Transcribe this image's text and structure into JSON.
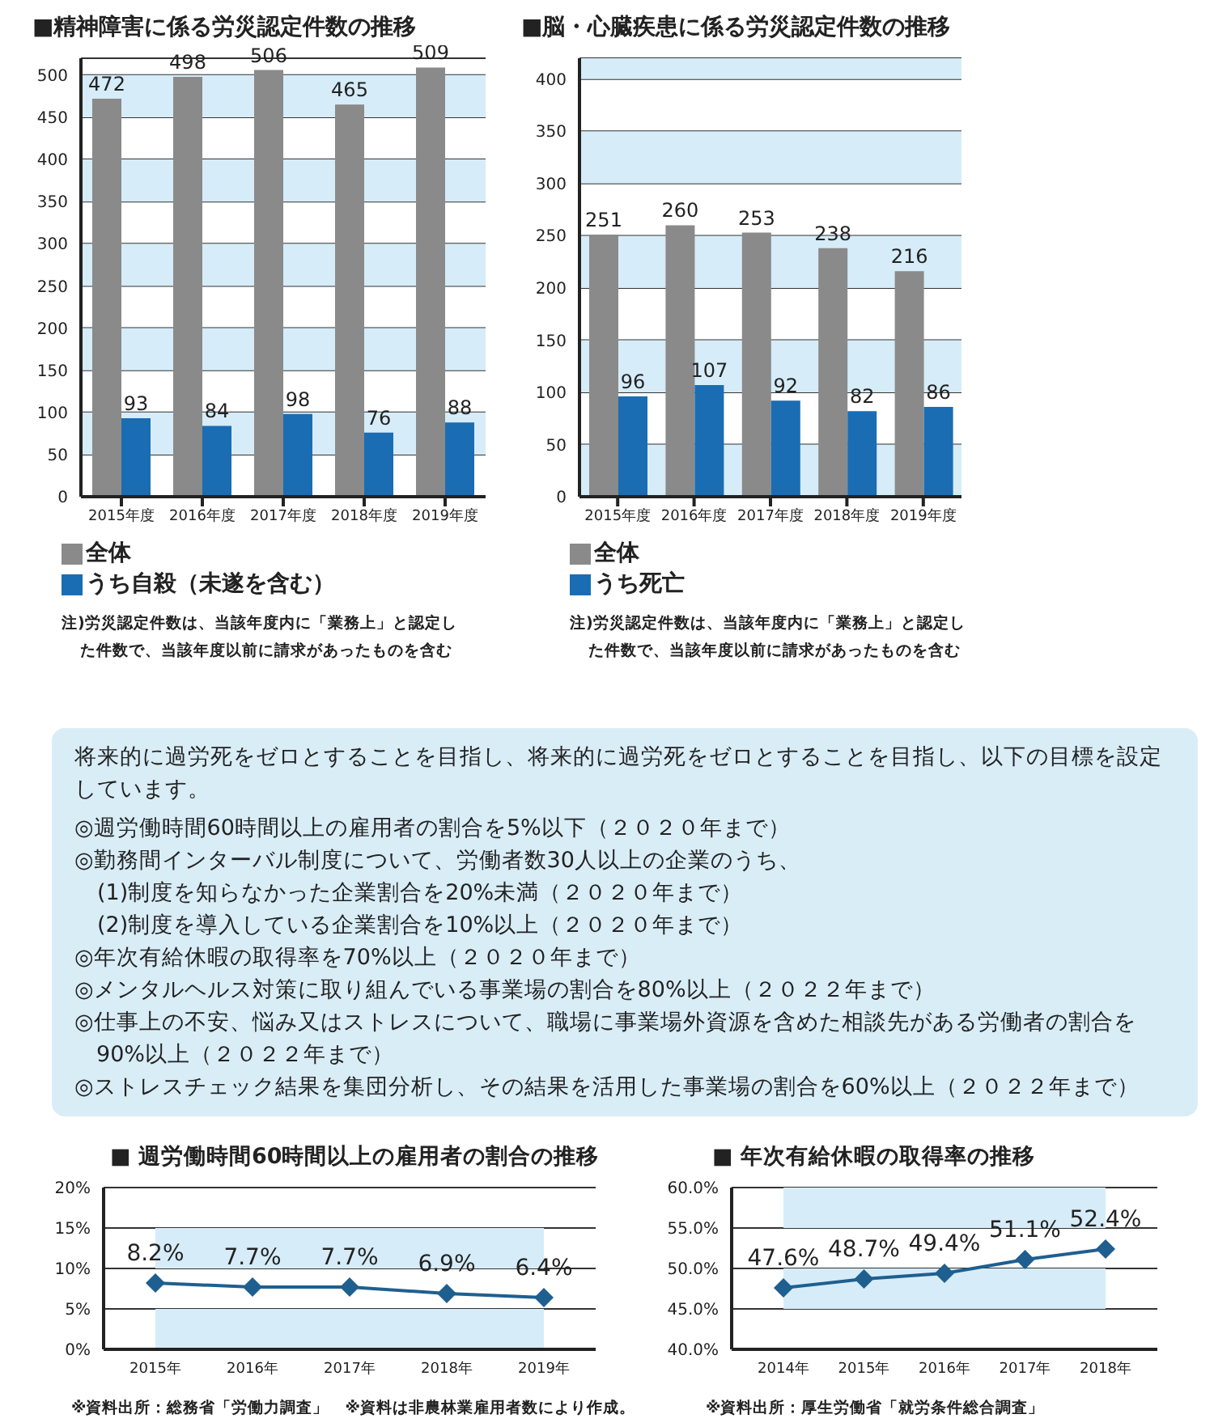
{
  "chart_data": [
    {
      "type": "bar",
      "title": "■精神障害に係る労災認定件数の推移",
      "categories": [
        "2015年度",
        "2016年度",
        "2017年度",
        "2018年度",
        "2019年度"
      ],
      "series": [
        {
          "name": "全体",
          "color": "#8a8a8a",
          "values": [
            472,
            498,
            506,
            465,
            509
          ]
        },
        {
          "name": "うち自殺（未遂を含む）",
          "color": "#1a6db3",
          "values": [
            93,
            84,
            98,
            76,
            88
          ]
        }
      ],
      "ylim": [
        0,
        520
      ],
      "yticks": [
        0,
        50,
        100,
        150,
        200,
        250,
        300,
        350,
        400,
        450,
        500
      ],
      "grid": "y",
      "legend": "bottom left",
      "data_labels": true,
      "bands": [
        {
          "axis": "y",
          "from": 50,
          "to": 100,
          "color": "#d6ecf8"
        },
        {
          "axis": "y",
          "from": 150,
          "to": 200,
          "color": "#d6ecf8"
        },
        {
          "axis": "y",
          "from": 250,
          "to": 300,
          "color": "#d6ecf8"
        },
        {
          "axis": "y",
          "from": 350,
          "to": 400,
          "color": "#d6ecf8"
        },
        {
          "axis": "y",
          "from": 450,
          "to": 500,
          "color": "#d6ecf8"
        }
      ],
      "annotations": [
        "注)労災認定件数は、当該年度内に「業務上」と認定した件数で、当該年度以前に請求があったものを含む"
      ]
    },
    {
      "type": "bar",
      "title": "■脳・心臓疾患に係る労災認定件数の推移",
      "categories": [
        "2015年度",
        "2016年度",
        "2017年度",
        "2018年度",
        "2019年度"
      ],
      "series": [
        {
          "name": "全体",
          "color": "#8a8a8a",
          "values": [
            251,
            260,
            253,
            238,
            216
          ]
        },
        {
          "name": "うち死亡",
          "color": "#1a6db3",
          "values": [
            96,
            107,
            92,
            82,
            86
          ]
        }
      ],
      "ylim": [
        0,
        420
      ],
      "yticks": [
        0,
        50,
        100,
        150,
        200,
        250,
        300,
        350,
        400
      ],
      "grid": "y",
      "legend": "bottom left",
      "data_labels": true,
      "bands": [
        {
          "axis": "y",
          "from": 0,
          "to": 50,
          "color": "#d6ecf8"
        },
        {
          "axis": "y",
          "from": 100,
          "to": 150,
          "color": "#d6ecf8"
        },
        {
          "axis": "y",
          "from": 200,
          "to": 250,
          "color": "#d6ecf8"
        },
        {
          "axis": "y",
          "from": 300,
          "to": 350,
          "color": "#d6ecf8"
        },
        {
          "axis": "y",
          "from": 400,
          "to": 420,
          "color": "#d6ecf8"
        }
      ],
      "annotations": [
        "注)労災認定件数は、当該年度内に「業務上」と認定した件数で、当該年度以前に請求があったものを含む"
      ]
    },
    {
      "type": "other",
      "annotations": [
        "将来的に過労死をゼロとすることを目指し、将来的に過労死をゼロとすることを目指し、以下の目標を設定しています。",
        "◎週労働時間60時間以上の雇用者の割合を5%以下（２０２０年まで）",
        "◎勤務間インターバル制度について、労働者数30人以上の企業のうち、",
        "　(1)制度を知らなかった企業割合を20%未満（２０２０年まで）",
        "　(2)制度を導入している企業割合を10%以上（２０２０年まで）",
        "◎年次有給休暇の取得率を70%以上（２０２０年まで）",
        "◎メンタルヘルス対策に取り組んでいる事業場の割合を80%以上（２０２２年まで）",
        "◎仕事上の不安、悩み又はストレスについて、職場に事業場外資源を含めた相談先がある労働者の割合を90%以上（２０２２年まで）",
        "◎ストレスチェック結果を集団分析し、その結果を活用した事業場の割合を60%以上（２０２２年まで）"
      ]
    },
    {
      "type": "line",
      "title": "■ 週労働時間60時間以上の雇用者の割合の推移",
      "categories": [
        "2015年",
        "2016年",
        "2017年",
        "2018年",
        "2019年"
      ],
      "series": [
        {
          "color": "#1f5f8f",
          "values": [
            8.2,
            7.7,
            7.7,
            6.9,
            6.4
          ],
          "value_labels": [
            "8.2%",
            "7.7%",
            "7.7%",
            "6.9%",
            "6.4%"
          ]
        }
      ],
      "marker": "diamond",
      "ylim": [
        0,
        20
      ],
      "yticks": [
        {
          "value": 0,
          "label": "0%"
        },
        {
          "value": 5,
          "label": "5%"
        },
        {
          "value": 10,
          "label": "10%"
        },
        {
          "value": 15,
          "label": "15%"
        },
        {
          "value": 20,
          "label": "20%"
        }
      ],
      "grid": "y",
      "bands": [
        {
          "axis": "y",
          "from": 0,
          "to": 5,
          "color": "#d6ecf8"
        },
        {
          "axis": "y",
          "from": 10,
          "to": 15,
          "color": "#d6ecf8"
        }
      ],
      "annotations": [
        "※資料出所：総務省「労働力調査」　※資料は非農林業雇用者数により作成。"
      ]
    },
    {
      "type": "line",
      "title": "■ 年次有給休暇の取得率の推移",
      "categories": [
        "2014年",
        "2015年",
        "2016年",
        "2017年",
        "2018年"
      ],
      "series": [
        {
          "color": "#1f5f8f",
          "values": [
            47.6,
            48.7,
            49.4,
            51.1,
            52.4
          ],
          "value_labels": [
            "47.6%",
            "48.7%",
            "49.4%",
            "51.1%",
            "52.4%"
          ]
        }
      ],
      "marker": "diamond",
      "ylim": [
        40,
        60
      ],
      "yticks": [
        {
          "value": 40,
          "label": "40.0%"
        },
        {
          "value": 45,
          "label": "45.0%"
        },
        {
          "value": 50,
          "label": "50.0%"
        },
        {
          "value": 55,
          "label": "55.0%"
        },
        {
          "value": 60,
          "label": "60.0%"
        }
      ],
      "grid": "y",
      "bands": [
        {
          "axis": "y",
          "from": 45,
          "to": 50,
          "color": "#d6ecf8"
        },
        {
          "axis": "y",
          "from": 55,
          "to": 60,
          "color": "#d6ecf8"
        }
      ],
      "annotations": [
        "※資料出所：厚生労働省「就労条件総合調査」"
      ]
    }
  ]
}
